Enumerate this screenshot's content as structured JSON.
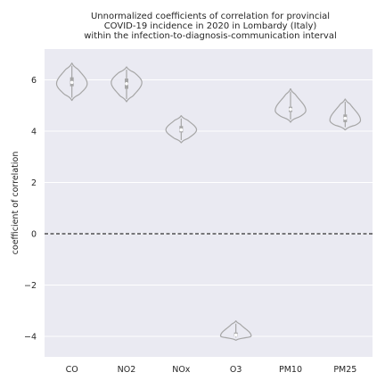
{
  "chart_data": {
    "type": "violin",
    "title": [
      "Unnormalized coefficients of correlation for provincial",
      "COVID-19 incidence in 2020 in Lombardy (Italy)",
      "within the infection-to-diagnosis-communication interval"
    ],
    "xlabel": "",
    "ylabel": "coefficient of correlation",
    "categories": [
      "CO",
      "NO2",
      "NOx",
      "O3",
      "PM10",
      "PM25"
    ],
    "ylim": [
      -4.8,
      7.2
    ],
    "yticks": [
      -4,
      -2,
      0,
      2,
      4,
      6
    ],
    "ytick_labels": [
      "−4",
      "−2",
      "0",
      "2",
      "4",
      "6"
    ],
    "reference_line": {
      "y": 0,
      "style": "dashed",
      "color": "#333333"
    },
    "grid": true,
    "background": "#eaeaf2",
    "violin_color": "#a6a6a6",
    "series": [
      {
        "category": "CO",
        "min": 5.2,
        "q1": 5.75,
        "median": 5.9,
        "q3": 6.1,
        "max": 6.65,
        "density_peak": 5.85
      },
      {
        "category": "NO2",
        "min": 5.15,
        "q1": 5.65,
        "median": 5.85,
        "q3": 6.05,
        "max": 6.5,
        "density_peak": 5.9
      },
      {
        "category": "NOx",
        "min": 3.55,
        "q1": 3.95,
        "median": 4.05,
        "q3": 4.2,
        "max": 4.6,
        "density_peak": 4.05
      },
      {
        "category": "O3",
        "min": -4.15,
        "q1": -4.0,
        "median": -3.95,
        "q3": -3.85,
        "max": -3.4,
        "density_peak": -3.98
      },
      {
        "category": "PM10",
        "min": 4.35,
        "q1": 4.75,
        "median": 4.85,
        "q3": 4.95,
        "max": 5.65,
        "density_peak": 4.8
      },
      {
        "category": "PM25",
        "min": 4.05,
        "q1": 4.35,
        "median": 4.5,
        "q3": 4.65,
        "max": 5.25,
        "density_peak": 4.42
      }
    ]
  }
}
